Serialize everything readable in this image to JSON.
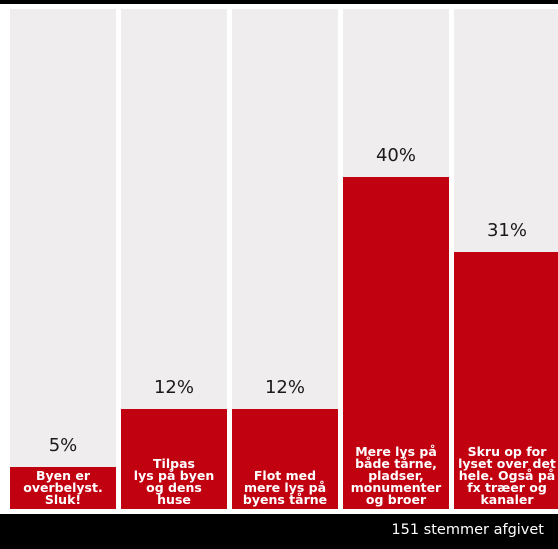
{
  "chart_data": {
    "type": "bar",
    "categories": [
      "Byen er overbelyst. Sluk!",
      "Tilpas lys på byen og dens huse",
      "Flot med mere lys på byens tårne",
      "Mere lys på både tårne, pladser, monumenter og broer",
      "Skru op for lyset over det hele. Også på fx træer og kanaler"
    ],
    "label_lines": [
      "Byen er\noverbelyst.\nSluk!",
      "Tilpas\nlys på byen\nog dens\nhuse",
      "Flot med\nmere lys på\nbyens tårne",
      "Mere lys på\nbåde tårne,\npladser,\nmonumenter\nog broer",
      "Skru op for\nlyset over det\nhele. Også på\nfx træer og\nkanaler"
    ],
    "values": [
      5,
      12,
      12,
      40,
      31
    ],
    "value_labels": [
      "5%",
      "12%",
      "12%",
      "40%",
      "31%"
    ],
    "ylim": [
      0,
      100
    ],
    "colors": {
      "bar": "#c10010",
      "track": "#efeded",
      "footer": "#000000"
    }
  },
  "footer": {
    "text": "151 stemmer afgivet"
  }
}
